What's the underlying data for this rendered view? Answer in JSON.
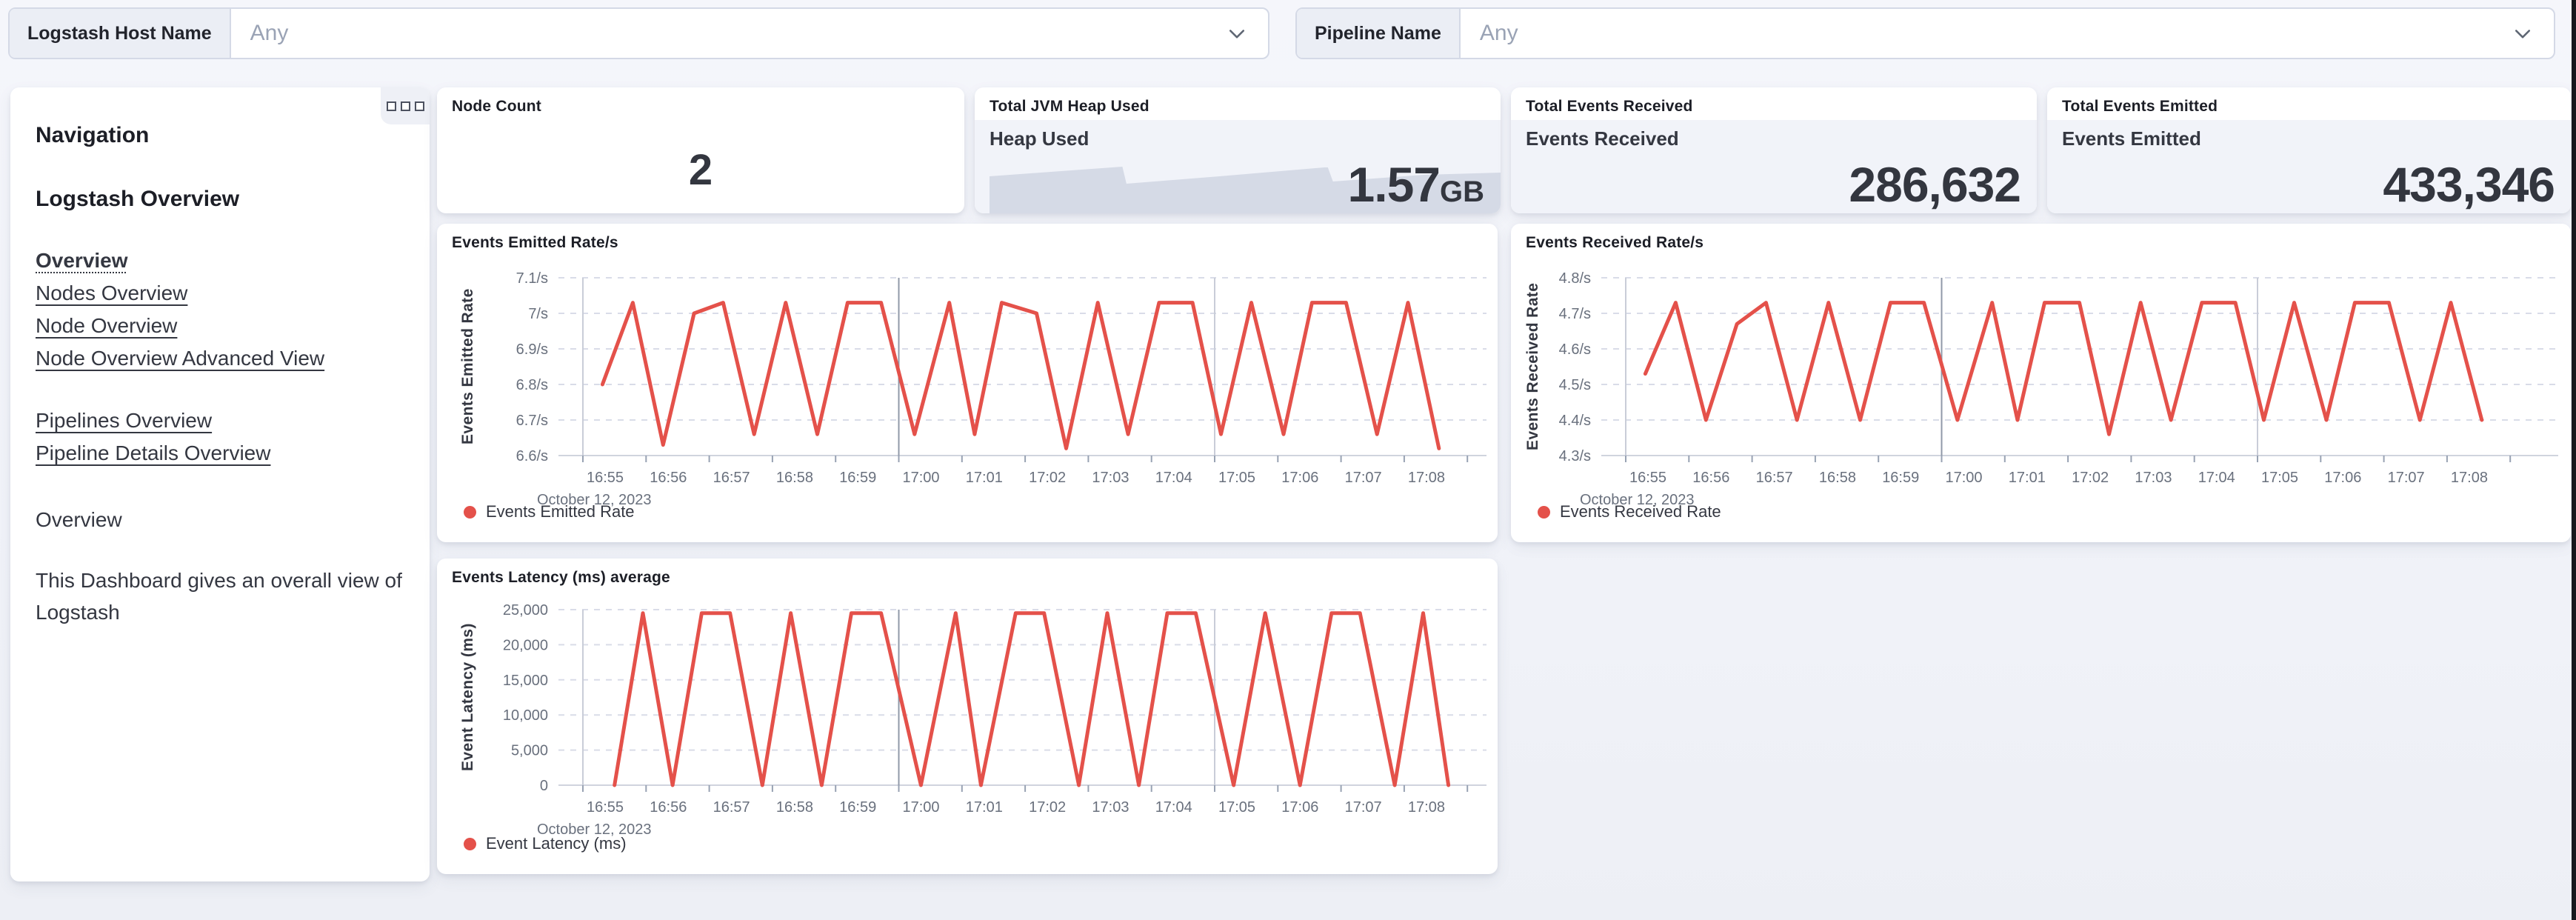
{
  "filters": {
    "logstash_host_name": {
      "label": "Logstash Host Name",
      "value": "Any"
    },
    "pipeline_name": {
      "label": "Pipeline Name",
      "value": "Any"
    }
  },
  "navigation": {
    "panel_title": "Navigation",
    "section_title": "Logstash Overview",
    "links_primary": [
      {
        "label": "Overview",
        "active": true
      },
      {
        "label": "Nodes Overview",
        "active": false
      },
      {
        "label": "Node Overview",
        "active": false
      },
      {
        "label": "Node Overview Advanced View",
        "active": false
      }
    ],
    "links_secondary": [
      {
        "label": "Pipelines Overview",
        "active": false
      },
      {
        "label": "Pipeline Details Overview",
        "active": false
      }
    ],
    "subheading": "Overview",
    "description": "This Dashboard gives an overall view of Logstash"
  },
  "panels": {
    "node_count": {
      "title": "Node Count",
      "value": "2"
    },
    "jvm_heap": {
      "title": "Total JVM Heap Used",
      "metric_label": "Heap Used",
      "value": "1.57",
      "unit": "GB"
    },
    "events_received_total": {
      "title": "Total Events Received",
      "metric_label": "Events Received",
      "value": "286,632"
    },
    "events_emitted_total": {
      "title": "Total Events Emitted",
      "metric_label": "Events Emitted",
      "value": "433,346"
    }
  },
  "colors": {
    "series_red": "#e4514a",
    "heap_area_fill": "#d5dae6",
    "grid_dashed": "#d9dce8",
    "axis_baseline": "#d0d4de",
    "tick_text": "#69707d",
    "emph_line_dark": "#9099a8",
    "emph_line_light": "#c9cdd8"
  },
  "chart_data": [
    {
      "type": "line",
      "title": "Events Emitted Rate/s",
      "ylabel": "Events Emitted Rate",
      "legend": "Events Emitted Rate",
      "color": "#e4514a",
      "grid": "horizontal-dashed",
      "legend_position": "bottom-left",
      "y_axis": {
        "min": 6.6,
        "max": 7.1,
        "ticks": [
          {
            "label": "7.1/s",
            "v": 7.1
          },
          {
            "label": "7/s",
            "v": 7.0
          },
          {
            "label": "6.9/s",
            "v": 6.9
          },
          {
            "label": "6.8/s",
            "v": 6.8
          },
          {
            "label": "6.7/s",
            "v": 6.7
          },
          {
            "label": "6.6/s",
            "v": 6.6
          }
        ]
      },
      "x_axis": {
        "date_label": "October 12, 2023",
        "tick_labels": [
          "16:55",
          "16:56",
          "16:57",
          "16:58",
          "16:59",
          "17:00",
          "17:01",
          "17:02",
          "17:03",
          "17:04",
          "17:05",
          "17:06",
          "17:07",
          "17:08"
        ],
        "unlabeled_end_tick": true,
        "emphasized_ticks": [
          "16:55",
          "17:00",
          "17:05"
        ]
      },
      "points_minutes_value": [
        [
          0.31,
          6.8
        ],
        [
          0.79,
          7.03
        ],
        [
          1.27,
          6.63
        ],
        [
          1.76,
          7.0
        ],
        [
          2.22,
          7.03
        ],
        [
          2.71,
          6.66
        ],
        [
          3.21,
          7.03
        ],
        [
          3.71,
          6.66
        ],
        [
          4.19,
          7.03
        ],
        [
          4.72,
          7.03
        ],
        [
          5.25,
          6.66
        ],
        [
          5.8,
          7.03
        ],
        [
          6.2,
          6.66
        ],
        [
          6.63,
          7.03
        ],
        [
          7.18,
          7.0
        ],
        [
          7.65,
          6.62
        ],
        [
          8.15,
          7.03
        ],
        [
          8.63,
          6.66
        ],
        [
          9.12,
          7.03
        ],
        [
          9.65,
          7.03
        ],
        [
          10.1,
          6.66
        ],
        [
          10.58,
          7.03
        ],
        [
          11.09,
          6.66
        ],
        [
          11.54,
          7.03
        ],
        [
          12.08,
          7.03
        ],
        [
          12.57,
          6.66
        ],
        [
          13.06,
          7.03
        ],
        [
          13.55,
          6.62
        ]
      ]
    },
    {
      "type": "line",
      "title": "Events Received Rate/s",
      "ylabel": "Events Received Rate",
      "legend": "Events Received Rate",
      "color": "#e4514a",
      "grid": "horizontal-dashed",
      "legend_position": "bottom-left",
      "y_axis": {
        "min": 4.3,
        "max": 4.8,
        "ticks": [
          {
            "label": "4.8/s",
            "v": 4.8
          },
          {
            "label": "4.7/s",
            "v": 4.7
          },
          {
            "label": "4.6/s",
            "v": 4.6
          },
          {
            "label": "4.5/s",
            "v": 4.5
          },
          {
            "label": "4.4/s",
            "v": 4.4
          },
          {
            "label": "4.3/s",
            "v": 4.3
          }
        ]
      },
      "x_axis": {
        "date_label": "October 12, 2023",
        "tick_labels": [
          "16:55",
          "16:56",
          "16:57",
          "16:58",
          "16:59",
          "17:00",
          "17:01",
          "17:02",
          "17:03",
          "17:04",
          "17:05",
          "17:06",
          "17:07",
          "17:08"
        ],
        "unlabeled_end_tick": true,
        "emphasized_ticks": [
          "16:55",
          "17:00",
          "17:05"
        ]
      },
      "points_minutes_value": [
        [
          0.31,
          4.53
        ],
        [
          0.79,
          4.73
        ],
        [
          1.27,
          4.4
        ],
        [
          1.76,
          4.67
        ],
        [
          2.22,
          4.73
        ],
        [
          2.71,
          4.4
        ],
        [
          3.21,
          4.73
        ],
        [
          3.71,
          4.4
        ],
        [
          4.19,
          4.73
        ],
        [
          4.72,
          4.73
        ],
        [
          5.25,
          4.4
        ],
        [
          5.8,
          4.73
        ],
        [
          6.2,
          4.4
        ],
        [
          6.63,
          4.73
        ],
        [
          7.18,
          4.73
        ],
        [
          7.65,
          4.36
        ],
        [
          8.15,
          4.73
        ],
        [
          8.63,
          4.4
        ],
        [
          9.12,
          4.73
        ],
        [
          9.65,
          4.73
        ],
        [
          10.1,
          4.4
        ],
        [
          10.58,
          4.73
        ],
        [
          11.09,
          4.4
        ],
        [
          11.54,
          4.73
        ],
        [
          12.08,
          4.73
        ],
        [
          12.57,
          4.4
        ],
        [
          13.06,
          4.73
        ],
        [
          13.55,
          4.4
        ]
      ]
    },
    {
      "type": "line",
      "title": "Events Latency (ms) average",
      "ylabel": "Event Latency (ms)",
      "legend": "Event Latency (ms)",
      "color": "#e4514a",
      "grid": "horizontal-dashed",
      "legend_position": "bottom-left",
      "y_axis": {
        "min": 0,
        "max": 25000,
        "ticks": [
          {
            "label": "25,000",
            "v": 25000
          },
          {
            "label": "20,000",
            "v": 20000
          },
          {
            "label": "15,000",
            "v": 15000
          },
          {
            "label": "10,000",
            "v": 10000
          },
          {
            "label": "5,000",
            "v": 5000
          },
          {
            "label": "0",
            "v": 0
          }
        ]
      },
      "x_axis": {
        "date_label": "October 12, 2023",
        "tick_labels": [
          "16:55",
          "16:56",
          "16:57",
          "16:58",
          "16:59",
          "17:00",
          "17:01",
          "17:02",
          "17:03",
          "17:04",
          "17:05",
          "17:06",
          "17:07",
          "17:08"
        ],
        "unlabeled_end_tick": true,
        "emphasized_ticks": [
          "16:55",
          "17:00",
          "17:05"
        ]
      },
      "points_minutes_value": [
        [
          0.5,
          0
        ],
        [
          0.95,
          24500
        ],
        [
          1.42,
          0
        ],
        [
          1.88,
          24500
        ],
        [
          2.33,
          24500
        ],
        [
          2.84,
          0
        ],
        [
          3.29,
          24500
        ],
        [
          3.78,
          0
        ],
        [
          4.25,
          24500
        ],
        [
          4.72,
          24500
        ],
        [
          5.35,
          0
        ],
        [
          5.9,
          24500
        ],
        [
          6.3,
          0
        ],
        [
          6.85,
          24500
        ],
        [
          7.3,
          24500
        ],
        [
          7.85,
          0
        ],
        [
          8.3,
          24500
        ],
        [
          8.8,
          0
        ],
        [
          9.25,
          24500
        ],
        [
          9.7,
          24500
        ],
        [
          10.3,
          0
        ],
        [
          10.8,
          24500
        ],
        [
          11.35,
          0
        ],
        [
          11.85,
          24500
        ],
        [
          12.3,
          24500
        ],
        [
          12.85,
          0
        ],
        [
          13.3,
          24500
        ],
        [
          13.7,
          0
        ]
      ]
    },
    {
      "type": "area",
      "title": "Heap Used",
      "color": "#d5dae6",
      "normalized_points": [
        [
          0,
          0.5
        ],
        [
          0.1,
          0.55
        ],
        [
          0.26,
          0.63
        ],
        [
          0.268,
          0.4
        ],
        [
          0.45,
          0.5
        ],
        [
          0.655,
          0.62
        ],
        [
          0.662,
          0.62
        ],
        [
          0.672,
          0.43
        ],
        [
          0.85,
          0.52
        ],
        [
          1,
          0.55
        ]
      ]
    }
  ]
}
